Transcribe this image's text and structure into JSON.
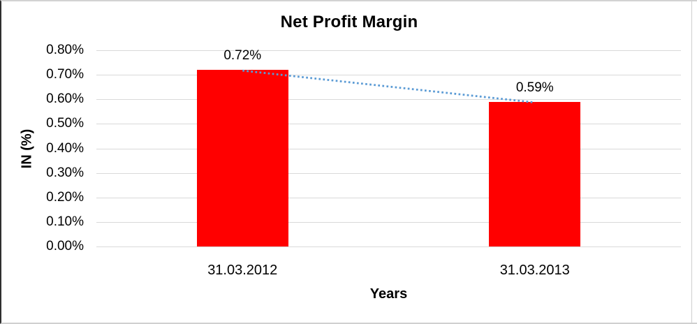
{
  "chart_data": {
    "type": "bar",
    "title": "Net Profit Margin",
    "xlabel": "Years",
    "ylabel": "IN (%)",
    "categories": [
      "31.03.2012",
      "31.03.2013"
    ],
    "values": [
      0.72,
      0.59
    ],
    "value_labels": [
      "0.72%",
      "0.59%"
    ],
    "unit": "percent",
    "ylim": [
      0.0,
      0.8
    ],
    "ytick_step": 0.1,
    "ytick_labels_top_to_bottom": [
      "0.80%",
      "0.70%",
      "0.60%",
      "0.50%",
      "0.40%",
      "0.30%",
      "0.20%",
      "0.10%",
      "0.00%"
    ],
    "grid": true,
    "legend": false,
    "trendline": {
      "type": "linear",
      "style": "dotted",
      "from_value": 0.72,
      "to_value": 0.59
    },
    "colors": {
      "bar": "#ff0000",
      "trendline": "#5b9bd5",
      "gridline": "#d9d9d9",
      "text": "#000000",
      "background": "#ffffff"
    }
  }
}
